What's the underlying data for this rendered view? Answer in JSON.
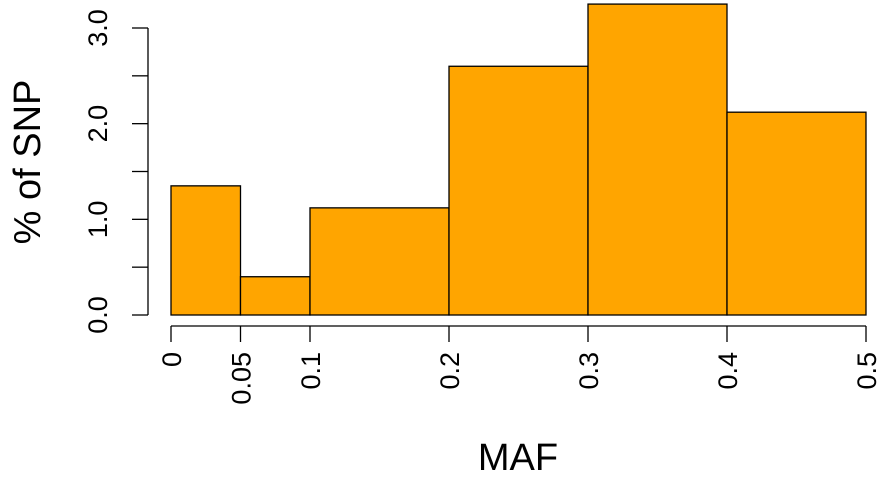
{
  "chart_data": {
    "type": "bar",
    "title": "",
    "xlabel": "MAF",
    "ylabel": "% of SNP",
    "bins": [
      {
        "from": 0,
        "to": 0.05,
        "value": 1.35
      },
      {
        "from": 0.05,
        "to": 0.1,
        "value": 0.4
      },
      {
        "from": 0.1,
        "to": 0.2,
        "value": 1.12
      },
      {
        "from": 0.2,
        "to": 0.3,
        "value": 2.6
      },
      {
        "from": 0.3,
        "to": 0.4,
        "value": 3.25
      },
      {
        "from": 0.4,
        "to": 0.5,
        "value": 2.12
      }
    ],
    "x_ticks": [
      "0",
      "0.05",
      "0.1",
      "0.2",
      "0.3",
      "0.4",
      "0.5"
    ],
    "x_tick_values": [
      0,
      0.05,
      0.1,
      0.2,
      0.3,
      0.4,
      0.5
    ],
    "y_tick_values": [
      0,
      0.5,
      1,
      1.5,
      2,
      2.5,
      3
    ],
    "y_tick_labels": [
      "0.0",
      "1.0",
      "2.0",
      "3.0"
    ],
    "y_labeled_values": [
      0,
      1,
      2,
      3
    ],
    "xlim": [
      0,
      0.5
    ],
    "ylim": [
      0,
      3.25
    ],
    "bar_color": "#FFA500",
    "grid": false,
    "legend": "none"
  }
}
